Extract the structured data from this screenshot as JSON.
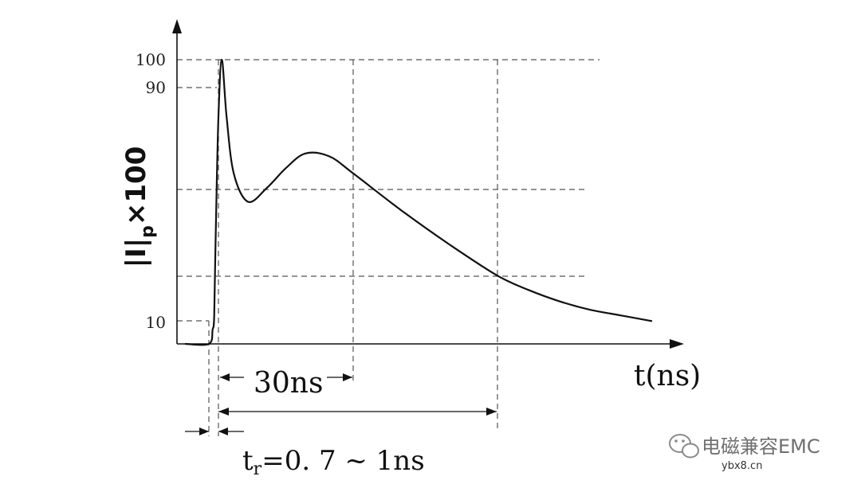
{
  "chart_data": {
    "type": "line",
    "ylabel": {
      "main": "|I|",
      "sub": "p",
      "suffix": "×100"
    },
    "xlabel": "t(ns)",
    "yticks": [
      "100",
      "90",
      "10"
    ],
    "series": [
      {
        "x": [
          -0.7,
          0,
          0.7,
          1.0,
          1.3,
          1.8,
          2.5,
          3.5,
          5,
          8,
          12,
          16,
          20,
          25,
          30,
          40,
          50,
          60,
          70,
          80,
          90,
          100,
          110
        ],
        "y": [
          0,
          0,
          5,
          10,
          40,
          80,
          100,
          80,
          60,
          50,
          55,
          62,
          67,
          66,
          60,
          47,
          35,
          24,
          19,
          15,
          12,
          10,
          8
        ]
      }
    ],
    "annotations": {
      "dim_30": "30ns",
      "rise_time": {
        "main": "t",
        "sub": "r",
        "rest": "=0. 7 ~ 1ns"
      }
    },
    "grid": "dashed"
  },
  "watermark": {
    "icon": "wechat-icon",
    "text": "电磁兼容EMC",
    "site": "ybx8.cn"
  }
}
